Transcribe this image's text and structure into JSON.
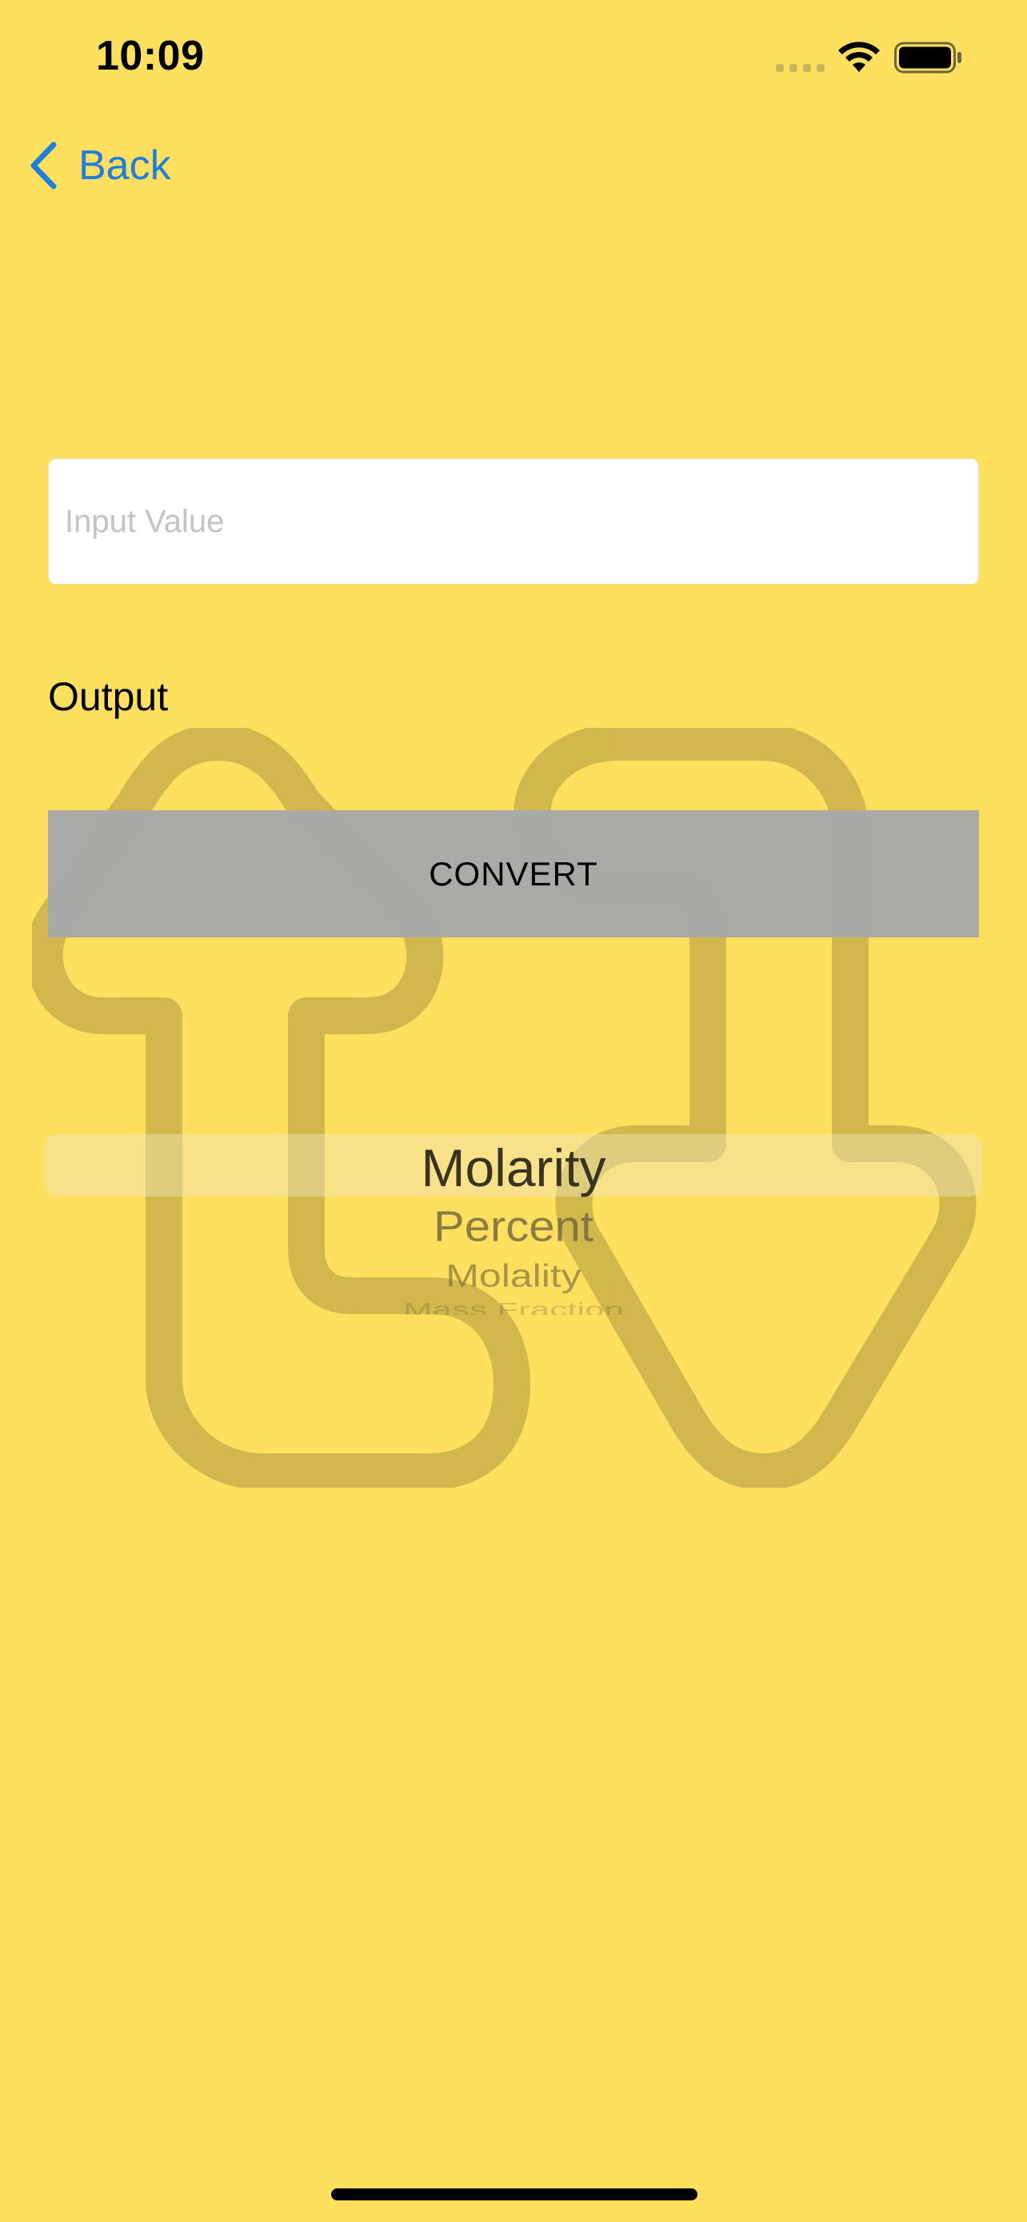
{
  "colors": {
    "background": "#FFDF5E",
    "accent": "#1F7FE0",
    "button_bg": "#A8A8A8",
    "illustration": "#CDB44A"
  },
  "status_bar": {
    "time": "10:09",
    "icons": [
      "cellular-signal-icon",
      "wifi-icon",
      "battery-icon"
    ]
  },
  "nav": {
    "back_label": "Back",
    "back_icon": "chevron-left-icon"
  },
  "input": {
    "placeholder": "Input Value",
    "value": ""
  },
  "output": {
    "label": "Output"
  },
  "convert_button": {
    "label": "CONVERT"
  },
  "picker": {
    "selected": "Molarity",
    "options": [
      "Molarity",
      "Percent",
      "Molality",
      "Mass Fraction"
    ]
  },
  "illustration": {
    "icon": "swap-arrows-icon"
  }
}
